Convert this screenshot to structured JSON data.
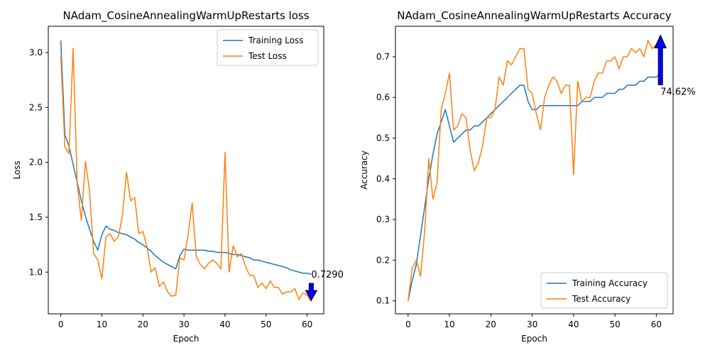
{
  "chart_data": [
    {
      "type": "line",
      "title": "NAdam_CosineAnnealingWarmUpRestarts loss",
      "xlabel": "Epoch",
      "ylabel": "Loss",
      "xlim": [
        -3.05,
        64.05
      ],
      "ylim": [
        0.62,
        3.24
      ],
      "xticks": [
        0,
        10,
        20,
        30,
        40,
        50,
        60
      ],
      "yticks": [
        1.0,
        1.5,
        2.0,
        2.5,
        3.0
      ],
      "ytick_labels": [
        "1.0",
        "1.5",
        "2.0",
        "2.5",
        "3.0"
      ],
      "grid": false,
      "legend_position": "upper right",
      "series": [
        {
          "name": "Training Loss",
          "color": "#1f77b4",
          "x": [
            0,
            1,
            2,
            3,
            4,
            5,
            6,
            7,
            8,
            9,
            10,
            11,
            12,
            13,
            14,
            15,
            16,
            17,
            18,
            19,
            20,
            21,
            22,
            23,
            24,
            25,
            26,
            27,
            28,
            29,
            30,
            31,
            32,
            33,
            34,
            35,
            36,
            37,
            38,
            39,
            40,
            41,
            42,
            43,
            44,
            45,
            46,
            47,
            48,
            49,
            50,
            51,
            52,
            53,
            54,
            55,
            56,
            57,
            58,
            59,
            60,
            61
          ],
          "y": [
            3.11,
            2.25,
            2.15,
            1.98,
            1.82,
            1.65,
            1.51,
            1.39,
            1.28,
            1.2,
            1.34,
            1.42,
            1.39,
            1.38,
            1.36,
            1.35,
            1.34,
            1.32,
            1.3,
            1.27,
            1.25,
            1.22,
            1.19,
            1.15,
            1.12,
            1.09,
            1.07,
            1.05,
            1.03,
            1.15,
            1.21,
            1.2,
            1.2,
            1.2,
            1.2,
            1.2,
            1.19,
            1.19,
            1.18,
            1.18,
            1.18,
            1.17,
            1.16,
            1.16,
            1.15,
            1.14,
            1.13,
            1.11,
            1.11,
            1.1,
            1.09,
            1.08,
            1.07,
            1.06,
            1.05,
            1.04,
            1.02,
            1.01,
            1.0,
            0.99,
            0.99,
            0.98
          ]
        },
        {
          "name": "Test Loss",
          "color": "#ff7f0e",
          "x": [
            0,
            1,
            2,
            3,
            4,
            5,
            6,
            7,
            8,
            9,
            10,
            11,
            12,
            13,
            14,
            15,
            16,
            17,
            18,
            19,
            20,
            21,
            22,
            23,
            24,
            25,
            26,
            27,
            28,
            29,
            30,
            31,
            32,
            33,
            34,
            35,
            36,
            37,
            38,
            39,
            40,
            41,
            42,
            43,
            44,
            45,
            46,
            47,
            48,
            49,
            50,
            51,
            52,
            53,
            54,
            55,
            56,
            57,
            58,
            59,
            60,
            61
          ],
          "y": [
            2.98,
            2.14,
            2.08,
            3.04,
            1.8,
            1.47,
            2.01,
            1.74,
            1.17,
            1.11,
            0.94,
            1.32,
            1.35,
            1.28,
            1.32,
            1.51,
            1.91,
            1.65,
            1.68,
            1.35,
            1.37,
            1.23,
            1.0,
            1.04,
            0.87,
            0.91,
            0.82,
            0.78,
            0.79,
            1.13,
            1.11,
            1.34,
            1.63,
            1.14,
            1.07,
            1.03,
            1.08,
            1.11,
            1.08,
            1.03,
            2.09,
            1.0,
            1.24,
            1.14,
            1.17,
            1.05,
            0.97,
            0.97,
            0.86,
            0.9,
            0.85,
            0.92,
            0.86,
            0.86,
            0.8,
            0.82,
            0.82,
            0.85,
            0.75,
            0.81,
            0.79,
            0.73
          ]
        }
      ],
      "annotation": {
        "text": "0.7290",
        "x": 61,
        "y": 0.729,
        "arrow": "down",
        "color": "#0000ff"
      }
    },
    {
      "type": "line",
      "title": "NAdam_CosineAnnealingWarmUpRestarts Accuracy",
      "xlabel": "Epoch",
      "ylabel": "Accuracy",
      "xlim": [
        -3.05,
        64.05
      ],
      "ylim": [
        0.068,
        0.775
      ],
      "xticks": [
        0,
        10,
        20,
        30,
        40,
        50,
        60
      ],
      "yticks": [
        0.1,
        0.2,
        0.3,
        0.4,
        0.5,
        0.6,
        0.7
      ],
      "ytick_labels": [
        "0.1",
        "0.2",
        "0.3",
        "0.4",
        "0.5",
        "0.6",
        "0.7"
      ],
      "grid": false,
      "legend_position": "lower right",
      "series": [
        {
          "name": "Training Accuracy",
          "color": "#1f77b4",
          "x": [
            0,
            1,
            2,
            3,
            4,
            5,
            6,
            7,
            8,
            9,
            10,
            11,
            12,
            13,
            14,
            15,
            16,
            17,
            18,
            19,
            20,
            21,
            22,
            23,
            24,
            25,
            26,
            27,
            28,
            29,
            30,
            31,
            32,
            33,
            34,
            35,
            36,
            37,
            38,
            39,
            40,
            41,
            42,
            43,
            44,
            45,
            46,
            47,
            48,
            49,
            50,
            51,
            52,
            53,
            54,
            55,
            56,
            57,
            58,
            59,
            60,
            61
          ],
          "y": [
            0.1,
            0.15,
            0.19,
            0.26,
            0.33,
            0.4,
            0.46,
            0.51,
            0.54,
            0.57,
            0.53,
            0.49,
            0.5,
            0.51,
            0.52,
            0.52,
            0.53,
            0.53,
            0.54,
            0.55,
            0.56,
            0.57,
            0.58,
            0.59,
            0.6,
            0.61,
            0.62,
            0.63,
            0.63,
            0.59,
            0.57,
            0.57,
            0.58,
            0.58,
            0.58,
            0.58,
            0.58,
            0.58,
            0.58,
            0.58,
            0.58,
            0.58,
            0.59,
            0.59,
            0.59,
            0.6,
            0.6,
            0.6,
            0.61,
            0.61,
            0.61,
            0.62,
            0.62,
            0.63,
            0.63,
            0.63,
            0.64,
            0.64,
            0.65,
            0.65,
            0.65,
            0.66
          ]
        },
        {
          "name": "Test Accuracy",
          "color": "#ff7f0e",
          "x": [
            0,
            1,
            2,
            3,
            4,
            5,
            6,
            7,
            8,
            9,
            10,
            11,
            12,
            13,
            14,
            15,
            16,
            17,
            18,
            19,
            20,
            21,
            22,
            23,
            24,
            25,
            26,
            27,
            28,
            29,
            30,
            31,
            32,
            33,
            34,
            35,
            36,
            37,
            38,
            39,
            40,
            41,
            42,
            43,
            44,
            45,
            46,
            47,
            48,
            49,
            50,
            51,
            52,
            53,
            54,
            55,
            56,
            57,
            58,
            59,
            60,
            61
          ],
          "y": [
            0.1,
            0.18,
            0.2,
            0.16,
            0.27,
            0.45,
            0.35,
            0.39,
            0.57,
            0.61,
            0.66,
            0.52,
            0.53,
            0.56,
            0.55,
            0.47,
            0.42,
            0.44,
            0.48,
            0.55,
            0.55,
            0.57,
            0.65,
            0.63,
            0.69,
            0.68,
            0.7,
            0.72,
            0.72,
            0.62,
            0.61,
            0.56,
            0.52,
            0.6,
            0.63,
            0.65,
            0.64,
            0.61,
            0.63,
            0.63,
            0.41,
            0.64,
            0.59,
            0.6,
            0.6,
            0.64,
            0.66,
            0.66,
            0.69,
            0.69,
            0.7,
            0.67,
            0.7,
            0.7,
            0.72,
            0.71,
            0.72,
            0.7,
            0.74,
            0.72,
            0.73,
            0.75
          ]
        }
      ],
      "annotation": {
        "text": "74.62%",
        "x": 61,
        "y": 0.7462,
        "arrow": "up",
        "color": "#0000ff"
      }
    }
  ]
}
